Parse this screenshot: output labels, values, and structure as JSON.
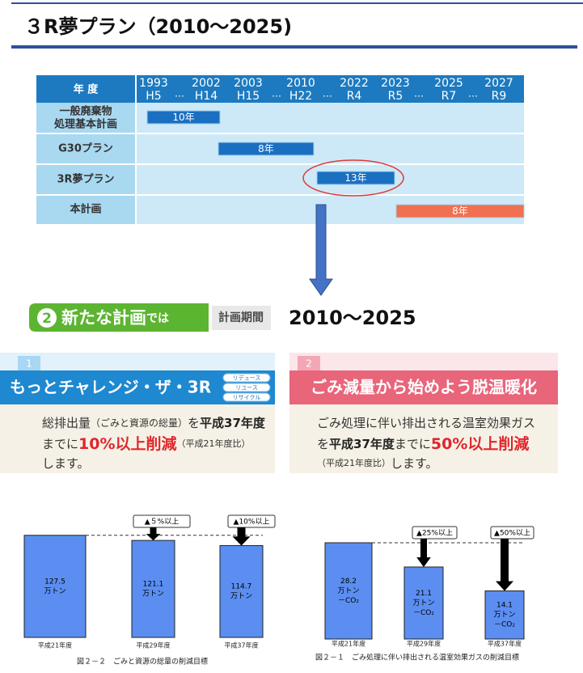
{
  "header": {
    "title": "３R夢プラン（2010～2025)"
  },
  "timeline": {
    "corner": "年 度",
    "separator": "…",
    "columns": [
      [
        "1993",
        "H5"
      ],
      [
        "2002",
        "H14"
      ],
      [
        "2003",
        "H15"
      ],
      [
        "2010",
        "H22"
      ],
      [
        "2022",
        "R4"
      ],
      [
        "2023",
        "R5"
      ],
      [
        "2025",
        "R7"
      ],
      [
        "2027",
        "R9"
      ]
    ],
    "rows": [
      {
        "label": [
          "一般廃棄物",
          "処理基本計画"
        ],
        "bar": "10年"
      },
      {
        "label": [
          "G30プラン"
        ],
        "bar": "8年"
      },
      {
        "label": [
          "3R夢プラン"
        ],
        "bar": "13年"
      },
      {
        "label": [
          "本計画"
        ],
        "bar": "8年"
      }
    ]
  },
  "plan": {
    "badge_number": "2",
    "badge_text": "新たな計画",
    "badge_suffix": "では",
    "period_label": "計画期間",
    "period": "2010～2025"
  },
  "cards": [
    {
      "number": "1",
      "title": "もっとチャレンジ・ザ・3R",
      "tags": [
        "リデュース",
        "リユース",
        "リサイクル"
      ],
      "lines": [
        [
          "総排出量",
          "（ごみと資源の総量）",
          "を",
          "平成37年度"
        ],
        [
          "までに",
          "10%以上削減",
          "（平成21年度比）"
        ],
        [
          "します。"
        ]
      ]
    },
    {
      "number": "2",
      "title": "ごみ減量から始めよう脱温暖化",
      "lines": [
        [
          "ごみ処理に伴い排出される温室効果ガス"
        ],
        [
          "を",
          "平成37年度",
          "までに",
          "50%以上削減"
        ],
        [
          "（平成21年度比）",
          "します。"
        ]
      ]
    }
  ],
  "charts": [
    {
      "categories": [
        "平成21年度",
        "平成29年度",
        "平成37年度"
      ],
      "values": [
        127.5,
        121.1,
        114.7
      ],
      "unit_lines": [
        "万トン"
      ],
      "callouts": [
        "▲５%以上",
        "▲10%以上"
      ],
      "caption": "図２－２　ごみと資源の総量の削減目標"
    },
    {
      "categories": [
        "平成21年度",
        "平成29年度",
        "平成37年度"
      ],
      "values": [
        28.2,
        21.1,
        14.1
      ],
      "unit_lines": [
        "万トン",
        "－CO₂"
      ],
      "callouts": [
        "▲25%以上",
        "▲50%以上"
      ],
      "caption": "図２－１　ごみ処理に伴い排出される温室効果ガスの削減目標"
    }
  ]
}
